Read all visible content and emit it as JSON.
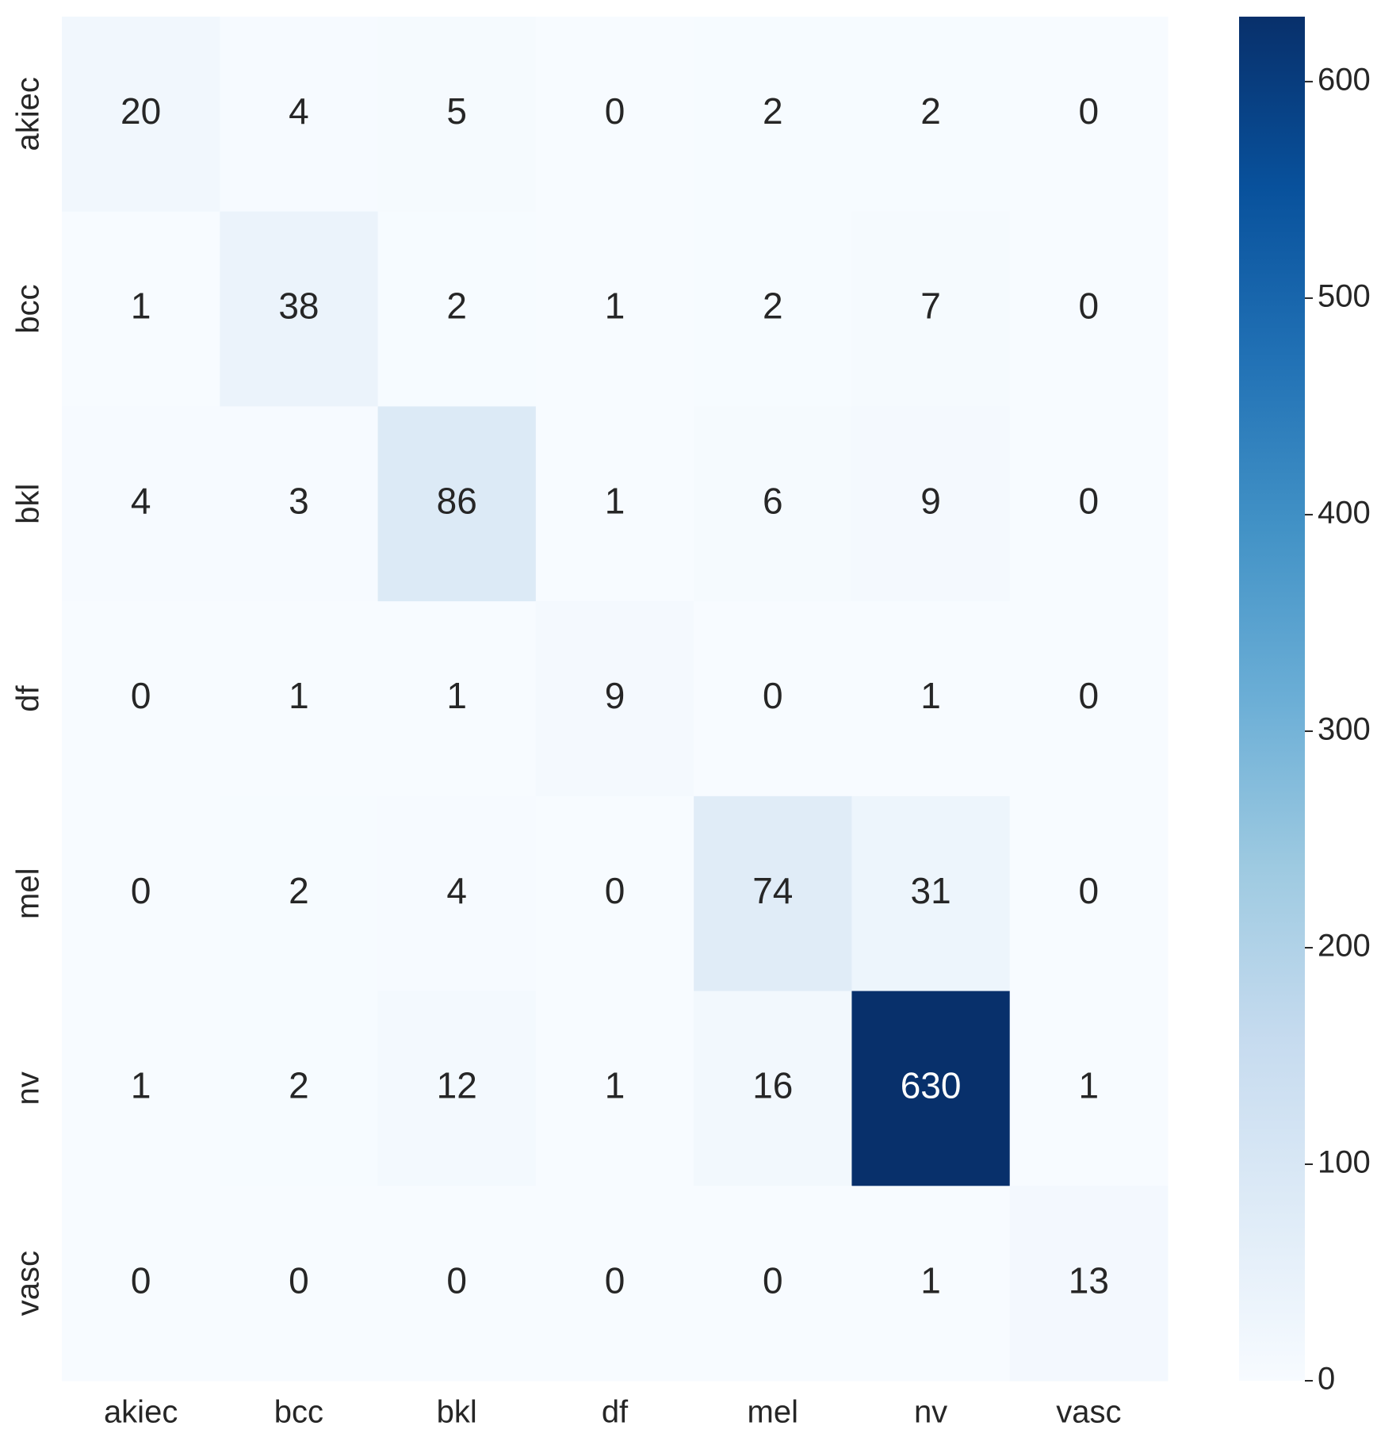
{
  "chart_data": {
    "type": "heatmap",
    "x_categories": [
      "akiec",
      "bcc",
      "bkl",
      "df",
      "mel",
      "nv",
      "vasc"
    ],
    "y_categories": [
      "akiec",
      "bcc",
      "bkl",
      "df",
      "mel",
      "nv",
      "vasc"
    ],
    "values": [
      [
        20,
        4,
        5,
        0,
        2,
        2,
        0
      ],
      [
        1,
        38,
        2,
        1,
        2,
        7,
        0
      ],
      [
        4,
        3,
        86,
        1,
        6,
        9,
        0
      ],
      [
        0,
        1,
        1,
        9,
        0,
        1,
        0
      ],
      [
        0,
        2,
        4,
        0,
        74,
        31,
        0
      ],
      [
        1,
        2,
        12,
        1,
        16,
        630,
        1
      ],
      [
        0,
        0,
        0,
        0,
        0,
        1,
        13
      ]
    ],
    "colormap": [
      "#f7fbff",
      "#deebf7",
      "#c6dbef",
      "#9ecae1",
      "#6baed6",
      "#4292c6",
      "#2171b5",
      "#08519c",
      "#08306b"
    ],
    "clim": [
      0,
      630
    ],
    "cticks": [
      0,
      100,
      200,
      300,
      400,
      500,
      600
    ]
  }
}
